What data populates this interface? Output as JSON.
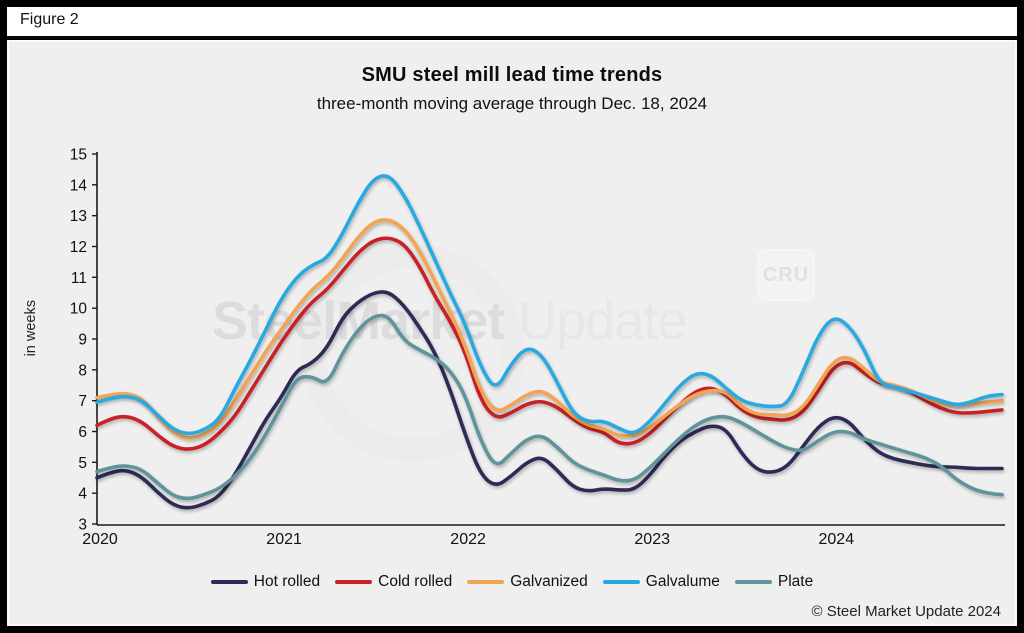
{
  "figure_label": "Figure 2",
  "title": "SMU steel mill lead time trends",
  "subtitle": "three-month moving average through Dec. 18, 2024",
  "y_axis_label": "in weeks",
  "footer": "© Steel Market Update 2024",
  "watermark": {
    "brand_bold": "SteelMarket",
    "brand_light": "Update",
    "cru": "CRU"
  },
  "colors": {
    "background": "#efeff0",
    "axis": "#1a1a1a",
    "hot_rolled": "#2e2957",
    "cold_rolled": "#c82127",
    "galvanized": "#f2a452",
    "galvalume": "#29a8e0",
    "plate": "#5e949b"
  },
  "chart_data": {
    "type": "line",
    "title": "SMU steel mill lead time trends",
    "subtitle": "three-month moving average through Dec. 18, 2024",
    "xlabel": "",
    "ylabel": "in weeks",
    "ylim": [
      3,
      15
    ],
    "yticks": [
      3,
      4,
      5,
      6,
      7,
      8,
      9,
      10,
      11,
      12,
      13,
      14,
      15
    ],
    "x_years": [
      2020,
      2021,
      2022,
      2023,
      2024
    ],
    "x_unit": "month",
    "x_start": "2020-01",
    "x_end": "2024-12",
    "grid": false,
    "legend_position": "bottom",
    "series": [
      {
        "name": "Hot rolled",
        "color": "#2e2957",
        "values": [
          4.5,
          4.7,
          4.75,
          4.5,
          4.0,
          3.6,
          3.5,
          3.65,
          3.9,
          4.6,
          5.5,
          6.4,
          7.1,
          8.0,
          8.2,
          8.7,
          9.7,
          10.2,
          10.5,
          10.55,
          10.1,
          9.4,
          8.6,
          7.4,
          5.9,
          4.6,
          4.2,
          4.55,
          5.0,
          5.2,
          4.75,
          4.2,
          4.05,
          4.15,
          4.1,
          4.1,
          4.55,
          5.2,
          5.7,
          6.0,
          6.2,
          6.1,
          5.3,
          4.75,
          4.65,
          4.85,
          5.5,
          6.15,
          6.5,
          6.35,
          5.75,
          5.3,
          5.1,
          5.0,
          4.9,
          4.85,
          4.85,
          4.8,
          4.8,
          4.8
        ]
      },
      {
        "name": "Cold rolled",
        "color": "#c82127",
        "values": [
          6.2,
          6.45,
          6.5,
          6.3,
          5.85,
          5.5,
          5.4,
          5.55,
          5.95,
          6.5,
          7.3,
          8.1,
          8.9,
          9.6,
          10.2,
          10.6,
          11.2,
          11.8,
          12.2,
          12.3,
          12.1,
          11.4,
          10.4,
          9.6,
          8.6,
          7.0,
          6.4,
          6.6,
          6.9,
          7.0,
          6.8,
          6.4,
          6.1,
          6.0,
          5.6,
          5.6,
          5.9,
          6.4,
          6.9,
          7.3,
          7.45,
          7.2,
          6.7,
          6.45,
          6.4,
          6.35,
          6.6,
          7.3,
          8.1,
          8.3,
          7.9,
          7.55,
          7.5,
          7.3,
          7.0,
          6.75,
          6.6,
          6.6,
          6.65,
          6.7
        ]
      },
      {
        "name": "Galvanized",
        "color": "#f2a452",
        "values": [
          7.1,
          7.2,
          7.25,
          7.05,
          6.45,
          5.95,
          5.75,
          5.9,
          6.25,
          7.0,
          7.8,
          8.6,
          9.3,
          10.0,
          10.6,
          11.0,
          11.6,
          12.3,
          12.8,
          12.9,
          12.6,
          11.9,
          10.9,
          9.9,
          8.8,
          7.3,
          6.6,
          6.85,
          7.2,
          7.35,
          7.0,
          6.5,
          6.2,
          6.1,
          5.85,
          5.85,
          6.1,
          6.5,
          6.9,
          7.2,
          7.35,
          7.3,
          6.8,
          6.55,
          6.55,
          6.5,
          6.75,
          7.5,
          8.3,
          8.45,
          8.05,
          7.6,
          7.5,
          7.35,
          7.1,
          6.9,
          6.85,
          6.9,
          6.95,
          7.0
        ]
      },
      {
        "name": "Galvalume",
        "color": "#29a8e0",
        "values": [
          6.95,
          7.1,
          7.15,
          7.0,
          6.5,
          6.05,
          5.9,
          6.05,
          6.4,
          7.4,
          8.3,
          9.3,
          10.3,
          11.0,
          11.4,
          11.6,
          12.4,
          13.4,
          14.2,
          14.35,
          13.7,
          12.7,
          11.6,
          10.5,
          9.5,
          8.1,
          7.3,
          8.2,
          8.75,
          8.5,
          7.6,
          6.6,
          6.3,
          6.35,
          6.1,
          5.9,
          6.3,
          6.9,
          7.5,
          7.9,
          7.85,
          7.4,
          7.0,
          6.85,
          6.8,
          6.85,
          7.9,
          9.1,
          9.75,
          9.45,
          8.7,
          7.55,
          7.45,
          7.3,
          7.15,
          7.0,
          6.85,
          6.95,
          7.15,
          7.2
        ]
      },
      {
        "name": "Plate",
        "color": "#5e949b",
        "values": [
          4.7,
          4.85,
          4.9,
          4.75,
          4.3,
          3.9,
          3.8,
          3.95,
          4.15,
          4.55,
          5.1,
          5.9,
          6.8,
          7.75,
          7.8,
          7.5,
          8.55,
          9.3,
          9.75,
          9.78,
          8.95,
          8.65,
          8.4,
          8.0,
          7.2,
          5.7,
          4.8,
          5.3,
          5.75,
          5.9,
          5.5,
          5.0,
          4.75,
          4.6,
          4.4,
          4.4,
          4.8,
          5.3,
          5.8,
          6.2,
          6.45,
          6.5,
          6.3,
          6.0,
          5.7,
          5.45,
          5.35,
          5.7,
          6.0,
          6.0,
          5.75,
          5.6,
          5.45,
          5.3,
          5.15,
          4.9,
          4.45,
          4.15,
          4.0,
          3.95
        ]
      }
    ]
  }
}
